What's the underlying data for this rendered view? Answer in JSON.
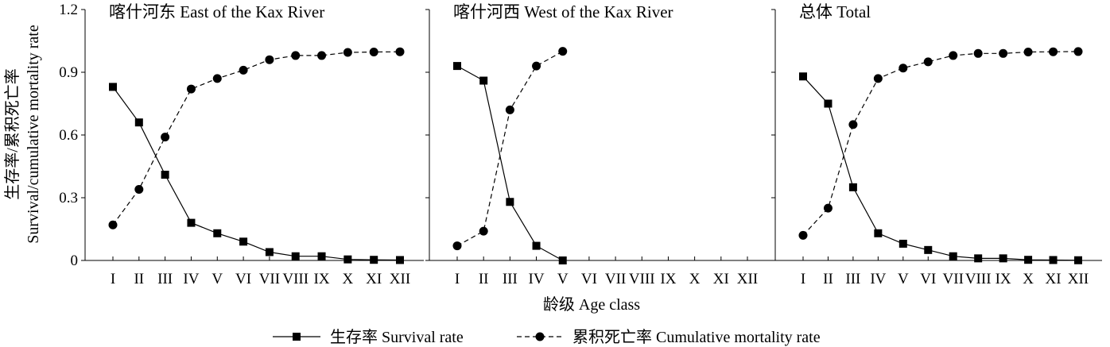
{
  "chart_data": {
    "type": "line",
    "categories": [
      "I",
      "II",
      "III",
      "IV",
      "V",
      "VI",
      "VII",
      "VIII",
      "IX",
      "X",
      "XI",
      "XII"
    ],
    "ylabel_line1": "生存率/累积死亡率",
    "ylabel_line2": "Survival/cumulative mortality rate",
    "xlabel": "龄级 Age class",
    "ylim": [
      0,
      1.2
    ],
    "yticks": [
      "0",
      "0.3",
      "0.6",
      "0.9",
      "1.2"
    ],
    "ytick_values": [
      0,
      0.3,
      0.6,
      0.9,
      1.2
    ],
    "grid": false,
    "legend_position": "bottom",
    "legend": [
      {
        "key": "survival",
        "label": "生存率 Survival rate",
        "line": "solid",
        "marker": "square"
      },
      {
        "key": "mortality",
        "label": "累积死亡率 Cumulative mortality rate",
        "line": "dashed",
        "marker": "circle"
      }
    ],
    "panels": [
      {
        "title": "喀什河东 East of the Kax River",
        "survival": [
          0.83,
          0.66,
          0.41,
          0.18,
          0.13,
          0.09,
          0.04,
          0.02,
          0.02,
          0.005,
          0.003,
          0.002
        ],
        "mortality": [
          0.17,
          0.34,
          0.59,
          0.82,
          0.87,
          0.91,
          0.96,
          0.98,
          0.98,
          0.995,
          0.997,
          0.998
        ]
      },
      {
        "title": "喀什河西 West of the Kax River",
        "survival": [
          0.93,
          0.86,
          0.28,
          0.07,
          0.0,
          null,
          null,
          null,
          null,
          null,
          null,
          null
        ],
        "mortality": [
          0.07,
          0.14,
          0.72,
          0.93,
          1.0,
          null,
          null,
          null,
          null,
          null,
          null,
          null
        ]
      },
      {
        "title": "总体 Total",
        "survival": [
          0.88,
          0.75,
          0.35,
          0.13,
          0.08,
          0.05,
          0.02,
          0.01,
          0.01,
          0.003,
          0.002,
          0.001
        ],
        "mortality": [
          0.12,
          0.25,
          0.65,
          0.87,
          0.92,
          0.95,
          0.98,
          0.99,
          0.99,
          0.997,
          0.998,
          0.999
        ]
      }
    ]
  }
}
